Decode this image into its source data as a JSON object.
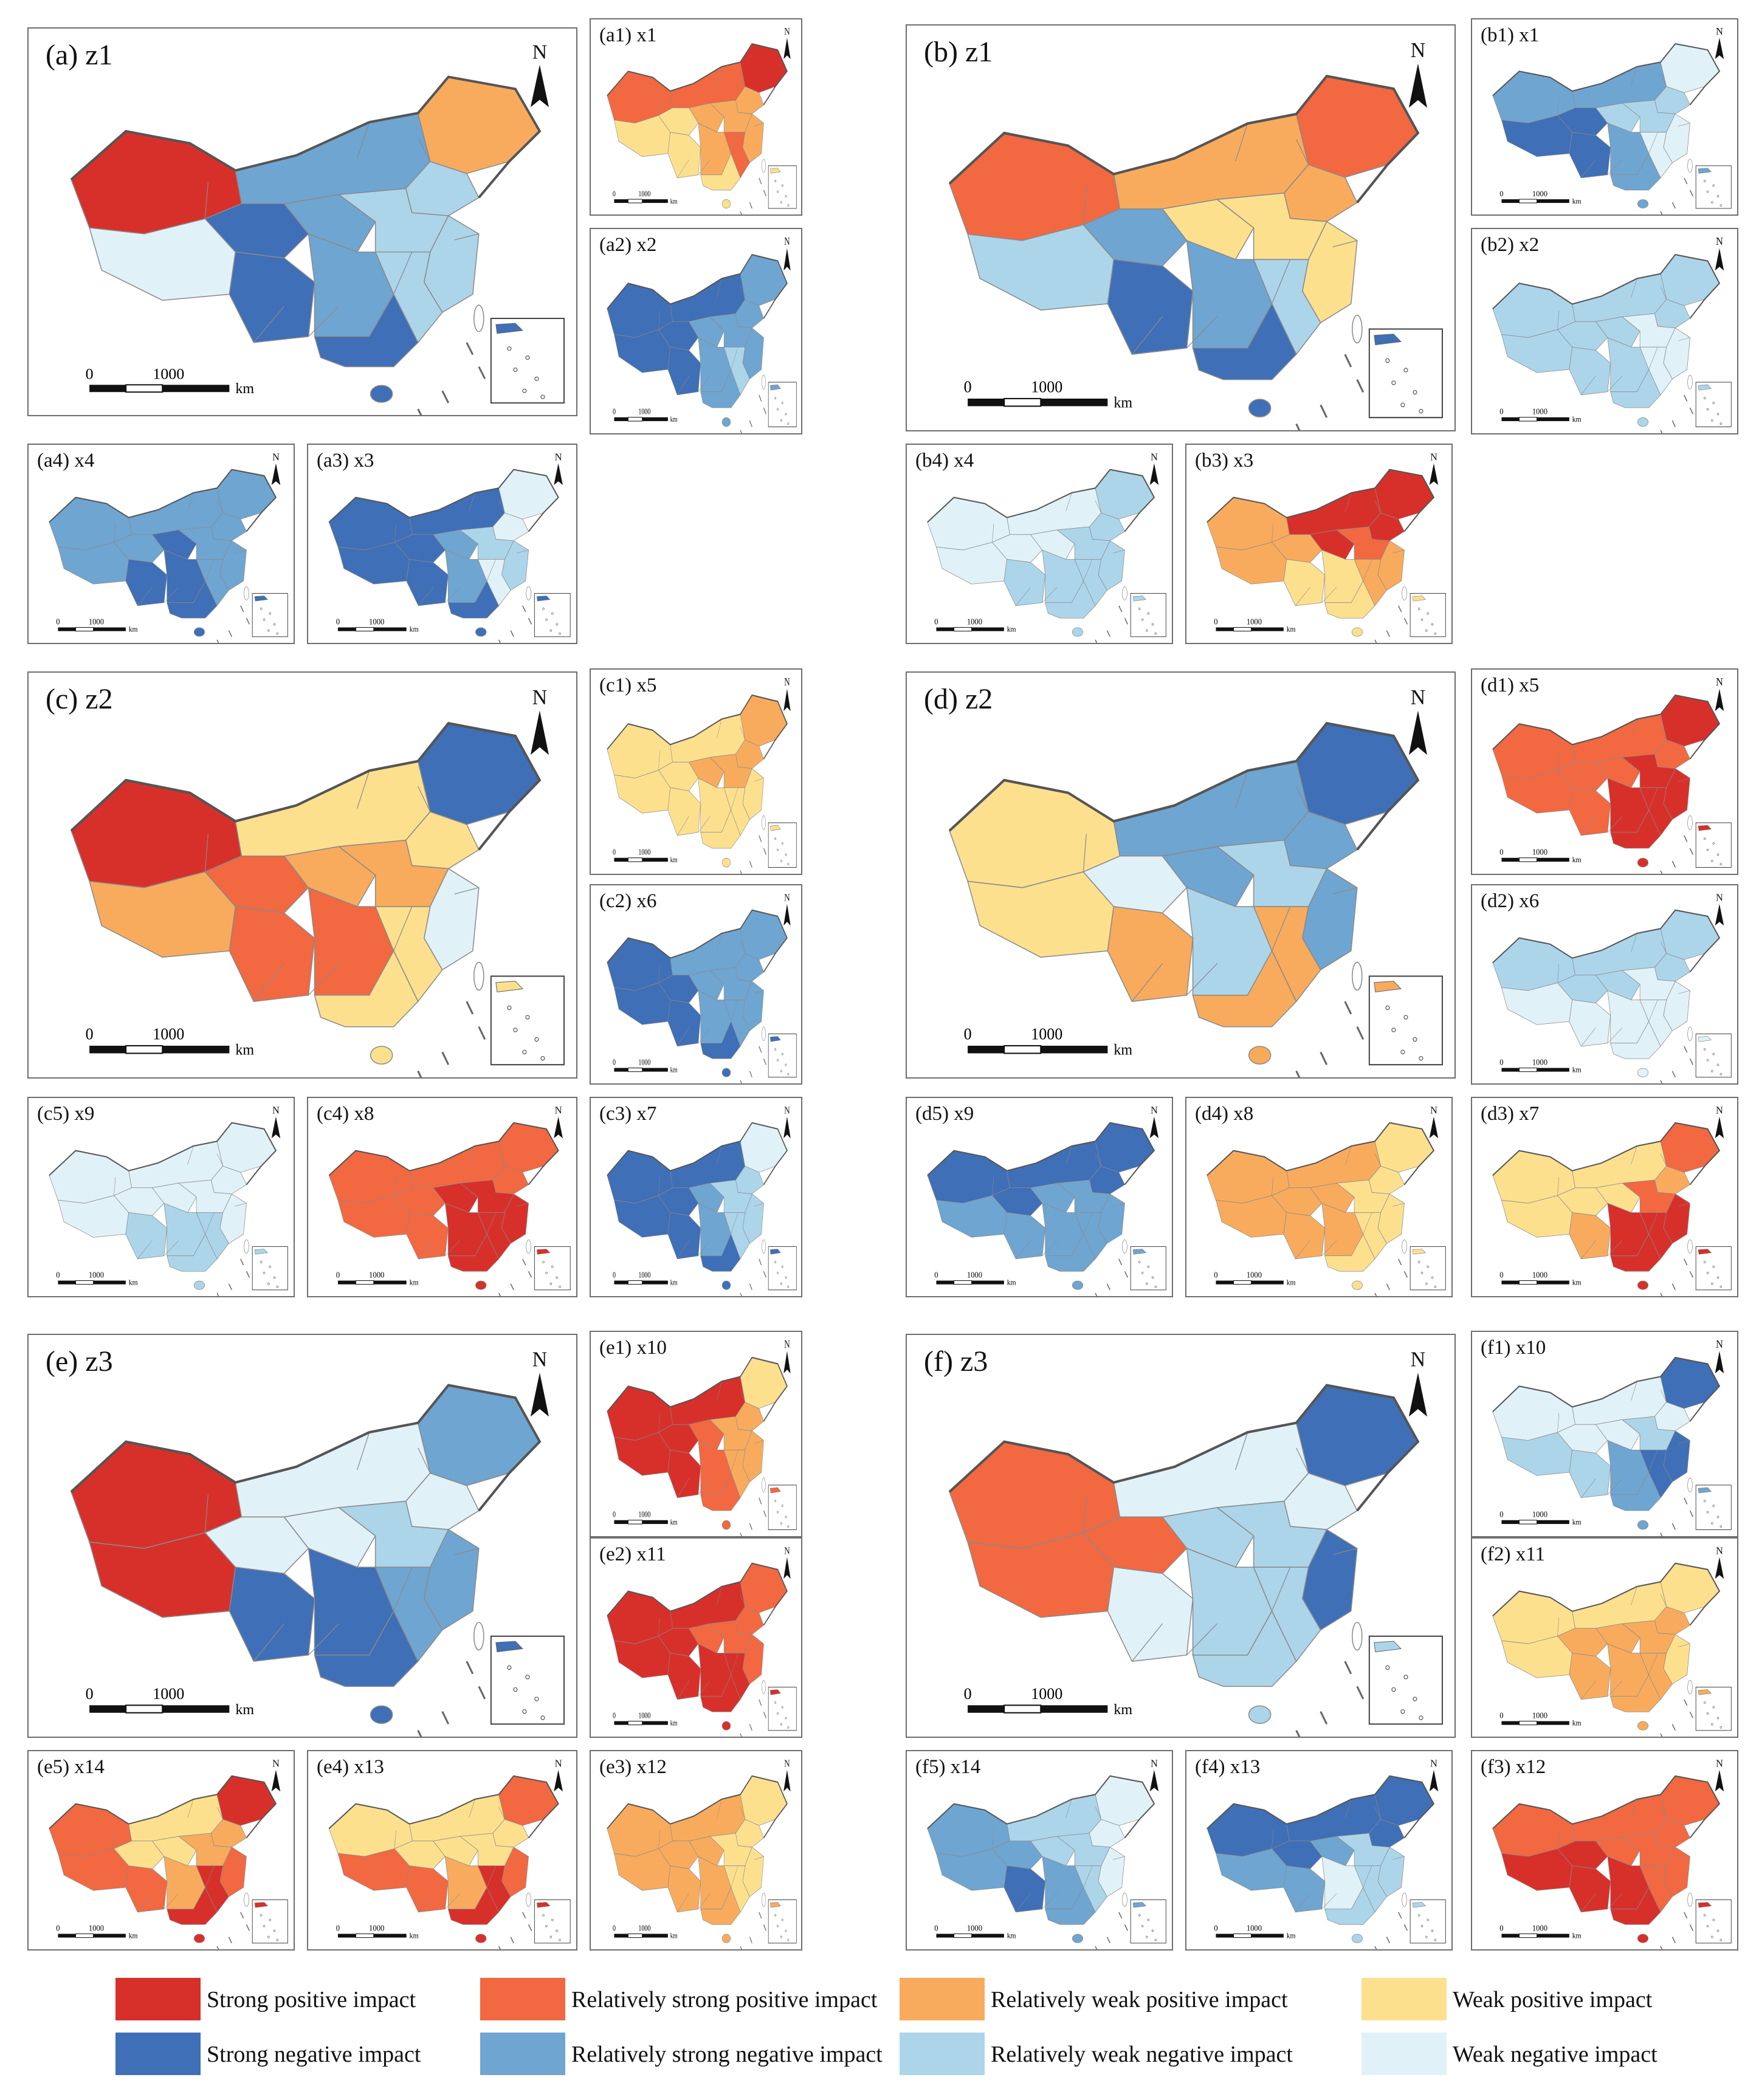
{
  "colors": {
    "strong_pos": "#d7302b",
    "rel_strong_pos": "#f26841",
    "rel_weak_pos": "#f8ab5d",
    "weak_pos": "#fde08e",
    "strong_neg": "#3f6fb6",
    "rel_strong_neg": "#6fa5d1",
    "rel_weak_neg": "#acd5ea",
    "weak_neg": "#e1f1f8"
  },
  "scale": {
    "zero": "0",
    "distance": "1000",
    "unit": "km"
  },
  "north": "N",
  "panels": [
    {
      "label": "(a) z1",
      "size": "big",
      "colors": [
        "strong_pos",
        "rel_strong_neg",
        "weak_neg",
        "rel_weak_neg",
        "rel_weak_pos",
        "strong_neg",
        "strong_neg",
        "rel_strong_neg",
        "rel_weak_neg",
        "rel_weak_neg",
        "rel_strong_neg",
        "rel_weak_neg",
        "strong_neg"
      ]
    },
    {
      "label": "(a1) x1",
      "size": "small",
      "colors": [
        "rel_strong_pos",
        "rel_strong_pos",
        "weak_pos",
        "rel_weak_pos",
        "strong_pos",
        "weak_pos",
        "weak_pos",
        "rel_weak_pos",
        "rel_weak_pos",
        "rel_weak_pos",
        "rel_weak_pos",
        "rel_strong_pos",
        "weak_pos"
      ]
    },
    {
      "label": "(a2) x2",
      "size": "small",
      "colors": [
        "strong_neg",
        "strong_neg",
        "strong_neg",
        "rel_strong_neg",
        "rel_strong_neg",
        "strong_neg",
        "strong_neg",
        "rel_strong_neg",
        "rel_strong_neg",
        "rel_strong_neg",
        "rel_strong_neg",
        "rel_weak_neg",
        "rel_strong_neg"
      ]
    },
    {
      "label": "(a3) x3",
      "size": "small",
      "colors": [
        "strong_neg",
        "strong_neg",
        "strong_neg",
        "weak_neg",
        "weak_neg",
        "strong_neg",
        "strong_neg",
        "rel_strong_neg",
        "rel_weak_neg",
        "rel_weak_neg",
        "rel_strong_neg",
        "weak_neg",
        "strong_neg"
      ]
    },
    {
      "label": "(a4) x4",
      "size": "small",
      "colors": [
        "rel_strong_neg",
        "rel_strong_neg",
        "rel_strong_neg",
        "rel_strong_neg",
        "rel_strong_neg",
        "rel_strong_neg",
        "strong_neg",
        "strong_neg",
        "rel_strong_neg",
        "rel_strong_neg",
        "strong_neg",
        "rel_strong_neg",
        "strong_neg"
      ]
    },
    {
      "label": "(b) z1",
      "size": "big",
      "colors": [
        "rel_strong_pos",
        "rel_weak_pos",
        "rel_weak_neg",
        "rel_weak_pos",
        "rel_strong_pos",
        "rel_strong_neg",
        "strong_neg",
        "weak_pos",
        "weak_pos",
        "weak_pos",
        "rel_strong_neg",
        "rel_weak_neg",
        "strong_neg"
      ]
    },
    {
      "label": "(b1) x1",
      "size": "small",
      "colors": [
        "rel_strong_neg",
        "rel_strong_neg",
        "strong_neg",
        "rel_weak_neg",
        "weak_neg",
        "strong_neg",
        "strong_neg",
        "rel_weak_neg",
        "rel_weak_neg",
        "weak_neg",
        "rel_strong_neg",
        "weak_neg",
        "rel_strong_neg"
      ]
    },
    {
      "label": "(b2) x2",
      "size": "small",
      "colors": [
        "rel_weak_neg",
        "rel_weak_neg",
        "rel_weak_neg",
        "rel_weak_neg",
        "rel_weak_neg",
        "rel_weak_neg",
        "rel_weak_neg",
        "rel_weak_neg",
        "weak_neg",
        "weak_neg",
        "rel_weak_neg",
        "weak_neg",
        "rel_weak_neg"
      ]
    },
    {
      "label": "(b3) x3",
      "size": "small",
      "colors": [
        "rel_weak_pos",
        "strong_pos",
        "rel_weak_pos",
        "strong_pos",
        "strong_pos",
        "rel_weak_pos",
        "weak_pos",
        "strong_pos",
        "rel_strong_pos",
        "rel_weak_pos",
        "weak_pos",
        "rel_weak_pos",
        "weak_pos"
      ]
    },
    {
      "label": "(b4) x4",
      "size": "small",
      "colors": [
        "weak_neg",
        "weak_neg",
        "weak_neg",
        "rel_weak_neg",
        "rel_weak_neg",
        "weak_neg",
        "rel_weak_neg",
        "weak_neg",
        "rel_weak_neg",
        "rel_weak_neg",
        "rel_weak_neg",
        "rel_weak_neg",
        "rel_weak_neg"
      ]
    },
    {
      "label": "(c) z2",
      "size": "big",
      "colors": [
        "strong_pos",
        "weak_pos",
        "rel_weak_pos",
        "weak_pos",
        "strong_neg",
        "rel_strong_pos",
        "rel_strong_pos",
        "rel_weak_pos",
        "rel_weak_pos",
        "weak_neg",
        "rel_strong_pos",
        "weak_pos",
        "weak_pos"
      ]
    },
    {
      "label": "(c1) x5",
      "size": "small",
      "colors": [
        "weak_pos",
        "weak_pos",
        "weak_pos",
        "rel_weak_pos",
        "rel_weak_pos",
        "weak_pos",
        "weak_pos",
        "rel_weak_pos",
        "rel_weak_pos",
        "weak_pos",
        "weak_pos",
        "weak_pos",
        "weak_pos"
      ]
    },
    {
      "label": "(c2) x6",
      "size": "small",
      "colors": [
        "strong_neg",
        "rel_strong_neg",
        "strong_neg",
        "rel_strong_neg",
        "rel_strong_neg",
        "strong_neg",
        "strong_neg",
        "rel_strong_neg",
        "rel_strong_neg",
        "rel_strong_neg",
        "rel_strong_neg",
        "rel_strong_neg",
        "strong_neg"
      ]
    },
    {
      "label": "(c3) x7",
      "size": "small",
      "colors": [
        "strong_neg",
        "strong_neg",
        "strong_neg",
        "rel_weak_neg",
        "weak_neg",
        "strong_neg",
        "strong_neg",
        "rel_strong_neg",
        "rel_weak_neg",
        "rel_weak_neg",
        "rel_strong_neg",
        "rel_weak_neg",
        "strong_neg"
      ]
    },
    {
      "label": "(c4) x8",
      "size": "small",
      "colors": [
        "rel_strong_pos",
        "rel_strong_pos",
        "rel_strong_pos",
        "rel_strong_pos",
        "rel_strong_pos",
        "rel_strong_pos",
        "rel_strong_pos",
        "strong_pos",
        "strong_pos",
        "strong_pos",
        "strong_pos",
        "strong_pos",
        "strong_pos"
      ]
    },
    {
      "label": "(c5) x9",
      "size": "small",
      "colors": [
        "weak_neg",
        "weak_neg",
        "weak_neg",
        "weak_neg",
        "weak_neg",
        "weak_neg",
        "rel_weak_neg",
        "weak_neg",
        "weak_neg",
        "weak_neg",
        "rel_weak_neg",
        "rel_weak_neg",
        "rel_weak_neg"
      ]
    },
    {
      "label": "(d) z2",
      "size": "big",
      "colors": [
        "weak_pos",
        "rel_strong_neg",
        "weak_pos",
        "rel_strong_neg",
        "strong_neg",
        "weak_neg",
        "rel_weak_pos",
        "rel_strong_neg",
        "rel_weak_neg",
        "rel_strong_neg",
        "rel_weak_neg",
        "rel_weak_pos",
        "rel_weak_pos"
      ]
    },
    {
      "label": "(d1) x5",
      "size": "small",
      "colors": [
        "rel_strong_pos",
        "rel_strong_pos",
        "rel_strong_pos",
        "rel_strong_pos",
        "strong_pos",
        "rel_strong_pos",
        "rel_strong_pos",
        "rel_strong_pos",
        "strong_pos",
        "strong_pos",
        "strong_pos",
        "strong_pos",
        "strong_pos"
      ]
    },
    {
      "label": "(d2) x6",
      "size": "small",
      "colors": [
        "rel_weak_neg",
        "rel_weak_neg",
        "weak_neg",
        "rel_weak_neg",
        "rel_weak_neg",
        "rel_weak_neg",
        "weak_neg",
        "rel_weak_neg",
        "weak_neg",
        "weak_neg",
        "weak_neg",
        "weak_neg",
        "weak_neg"
      ]
    },
    {
      "label": "(d3) x7",
      "size": "small",
      "colors": [
        "weak_pos",
        "weak_pos",
        "weak_pos",
        "rel_weak_pos",
        "rel_strong_pos",
        "weak_pos",
        "rel_weak_pos",
        "weak_pos",
        "rel_strong_pos",
        "strong_pos",
        "strong_pos",
        "strong_pos",
        "strong_pos"
      ]
    },
    {
      "label": "(d4) x8",
      "size": "small",
      "colors": [
        "rel_weak_pos",
        "rel_weak_pos",
        "rel_weak_pos",
        "weak_pos",
        "weak_pos",
        "rel_weak_pos",
        "rel_weak_pos",
        "rel_weak_pos",
        "weak_pos",
        "weak_pos",
        "rel_weak_pos",
        "weak_pos",
        "weak_pos"
      ]
    },
    {
      "label": "(d5) x9",
      "size": "small",
      "colors": [
        "strong_neg",
        "strong_neg",
        "rel_strong_neg",
        "strong_neg",
        "strong_neg",
        "strong_neg",
        "rel_strong_neg",
        "rel_strong_neg",
        "rel_strong_neg",
        "rel_strong_neg",
        "rel_strong_neg",
        "rel_strong_neg",
        "rel_strong_neg"
      ]
    },
    {
      "label": "(e) z3",
      "size": "big",
      "colors": [
        "strong_pos",
        "weak_neg",
        "strong_pos",
        "weak_neg",
        "rel_strong_neg",
        "weak_neg",
        "strong_neg",
        "weak_neg",
        "rel_weak_neg",
        "rel_strong_neg",
        "strong_neg",
        "rel_strong_neg",
        "strong_neg"
      ]
    },
    {
      "label": "(e1) x10",
      "size": "small",
      "colors": [
        "strong_pos",
        "strong_pos",
        "strong_pos",
        "rel_weak_pos",
        "weak_pos",
        "strong_pos",
        "strong_pos",
        "rel_strong_pos",
        "rel_weak_pos",
        "rel_weak_pos",
        "rel_strong_pos",
        "rel_weak_pos",
        "rel_strong_pos"
      ]
    },
    {
      "label": "(e2) x11",
      "size": "small",
      "colors": [
        "strong_pos",
        "strong_pos",
        "strong_pos",
        "rel_strong_pos",
        "rel_strong_pos",
        "strong_pos",
        "strong_pos",
        "rel_strong_pos",
        "rel_strong_pos",
        "rel_strong_pos",
        "strong_pos",
        "strong_pos",
        "strong_pos"
      ]
    },
    {
      "label": "(e3) x12",
      "size": "small",
      "colors": [
        "rel_weak_pos",
        "rel_weak_pos",
        "rel_weak_pos",
        "weak_pos",
        "weak_pos",
        "rel_weak_pos",
        "rel_weak_pos",
        "rel_weak_pos",
        "weak_pos",
        "weak_pos",
        "rel_weak_pos",
        "weak_pos",
        "rel_weak_pos"
      ]
    },
    {
      "label": "(e4) x13",
      "size": "small",
      "colors": [
        "weak_pos",
        "weak_pos",
        "rel_strong_pos",
        "weak_pos",
        "rel_strong_pos",
        "weak_pos",
        "rel_strong_pos",
        "weak_pos",
        "weak_pos",
        "rel_strong_pos",
        "rel_weak_pos",
        "strong_pos",
        "strong_pos"
      ]
    },
    {
      "label": "(e5) x14",
      "size": "small",
      "colors": [
        "rel_strong_pos",
        "weak_pos",
        "rel_strong_pos",
        "rel_weak_pos",
        "strong_pos",
        "weak_pos",
        "rel_strong_pos",
        "weak_pos",
        "rel_weak_pos",
        "rel_strong_pos",
        "rel_weak_pos",
        "strong_pos",
        "strong_pos"
      ]
    },
    {
      "label": "(f) z3",
      "size": "big",
      "colors": [
        "rel_strong_pos",
        "weak_neg",
        "rel_strong_pos",
        "weak_neg",
        "strong_neg",
        "rel_strong_pos",
        "weak_neg",
        "rel_weak_neg",
        "rel_weak_neg",
        "strong_neg",
        "rel_weak_neg",
        "rel_weak_neg",
        "rel_weak_neg"
      ]
    },
    {
      "label": "(f1) x10",
      "size": "small",
      "colors": [
        "weak_neg",
        "weak_neg",
        "rel_weak_neg",
        "weak_neg",
        "strong_neg",
        "weak_neg",
        "rel_weak_neg",
        "weak_neg",
        "rel_weak_neg",
        "strong_neg",
        "rel_strong_neg",
        "strong_neg",
        "rel_strong_neg"
      ]
    },
    {
      "label": "(f2) x11",
      "size": "small",
      "colors": [
        "weak_pos",
        "weak_pos",
        "weak_pos",
        "rel_weak_pos",
        "weak_pos",
        "rel_weak_pos",
        "rel_weak_pos",
        "rel_weak_pos",
        "rel_weak_pos",
        "weak_pos",
        "rel_weak_pos",
        "rel_weak_pos",
        "rel_weak_pos"
      ]
    },
    {
      "label": "(f3) x12",
      "size": "small",
      "colors": [
        "rel_strong_pos",
        "rel_strong_pos",
        "strong_pos",
        "rel_strong_pos",
        "rel_strong_pos",
        "strong_pos",
        "strong_pos",
        "rel_strong_pos",
        "rel_strong_pos",
        "rel_strong_pos",
        "strong_pos",
        "rel_strong_pos",
        "strong_pos"
      ]
    },
    {
      "label": "(f4) x13",
      "size": "small",
      "colors": [
        "strong_neg",
        "strong_neg",
        "rel_strong_neg",
        "strong_neg",
        "strong_neg",
        "strong_neg",
        "rel_strong_neg",
        "rel_strong_neg",
        "rel_weak_neg",
        "rel_weak_neg",
        "weak_neg",
        "rel_weak_neg",
        "rel_weak_neg"
      ]
    },
    {
      "label": "(f5) x14",
      "size": "small",
      "colors": [
        "rel_strong_neg",
        "rel_weak_neg",
        "rel_strong_neg",
        "weak_neg",
        "weak_neg",
        "rel_strong_neg",
        "strong_neg",
        "rel_weak_neg",
        "rel_weak_neg",
        "weak_neg",
        "rel_strong_neg",
        "rel_weak_neg",
        "rel_strong_neg"
      ]
    }
  ],
  "legend": [
    {
      "key": "strong_pos",
      "label": "Strong positive impact"
    },
    {
      "key": "rel_strong_pos",
      "label": "Relatively strong positive impact"
    },
    {
      "key": "rel_weak_pos",
      "label": "Relatively weak positive impact"
    },
    {
      "key": "weak_pos",
      "label": "Weak positive impact"
    },
    {
      "key": "strong_neg",
      "label": "Strong negative impact"
    },
    {
      "key": "rel_strong_neg",
      "label": "Relatively strong negative impact"
    },
    {
      "key": "rel_weak_neg",
      "label": "Relatively weak negative impact"
    },
    {
      "key": "weak_neg",
      "label": "Weak negative impact"
    }
  ]
}
